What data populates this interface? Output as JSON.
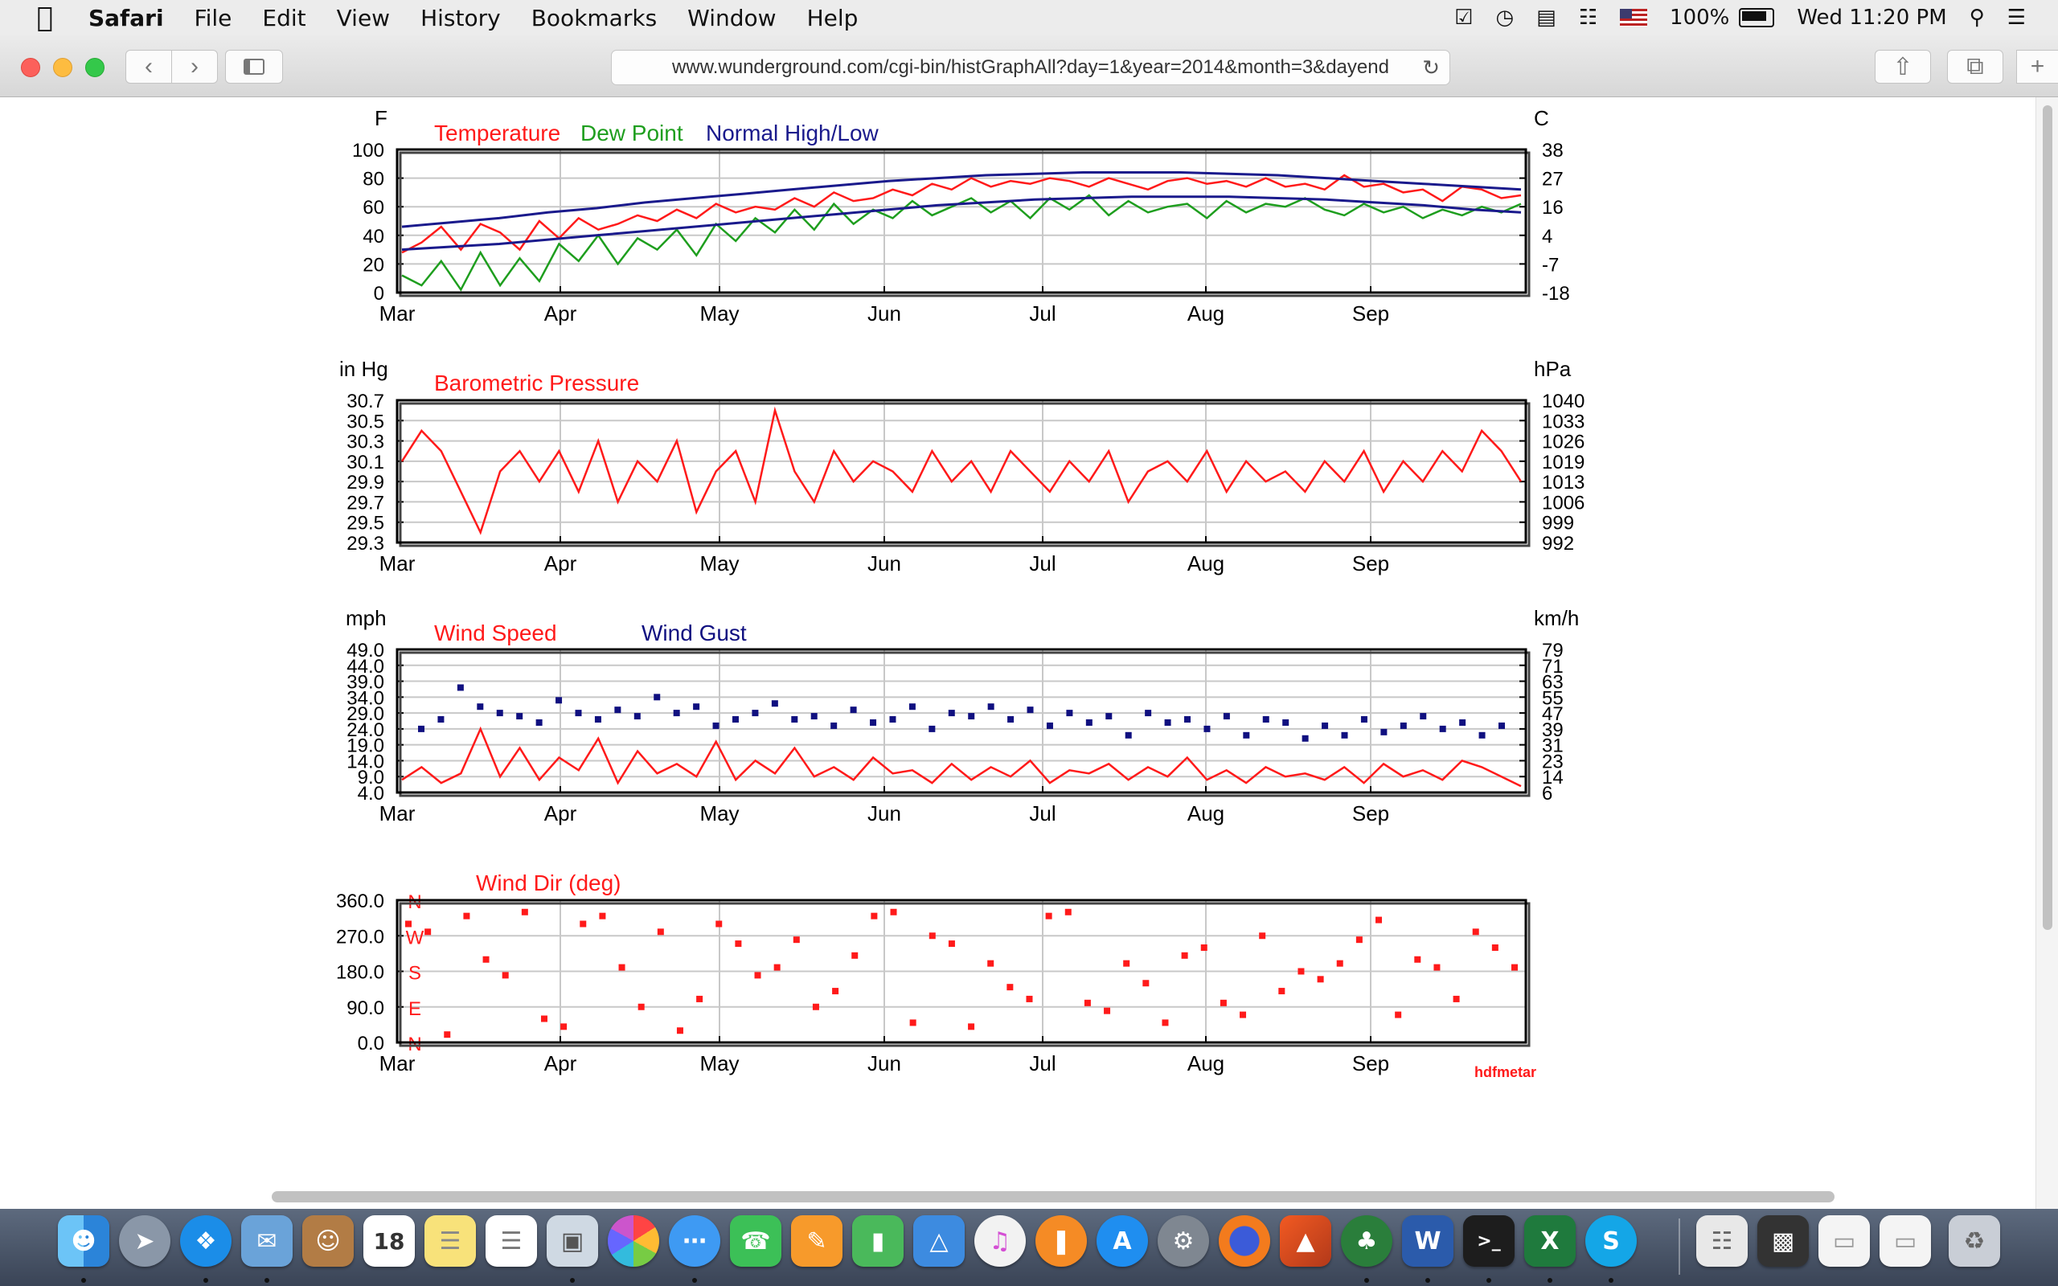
{
  "menubar": {
    "app": "Safari",
    "items": [
      "File",
      "Edit",
      "View",
      "History",
      "Bookmarks",
      "Window",
      "Help"
    ],
    "battery": "100%",
    "clock": "Wed 11:20 PM"
  },
  "toolbar": {
    "url": "www.wunderground.com/cgi-bin/histGraphAll?day=1&year=2014&month=3&dayend"
  },
  "colors": {
    "temperature": "#ff1a1a",
    "dew_point": "#1e9e1e",
    "normal": "#1a1a8c",
    "pressure": "#ff1a1a",
    "wind_speed": "#ff1a1a",
    "wind_gust": "#101080",
    "wind_dir": "#ff1a1a"
  },
  "x_ticks": [
    "Mar",
    "Apr",
    "May",
    "Jun",
    "Jul",
    "Aug",
    "Sep"
  ],
  "chart_data": [
    {
      "type": "line",
      "legend": [
        "Temperature",
        "Dew Point",
        "Normal High/Low"
      ],
      "ylabel": "F",
      "ylabel_right": "C",
      "y_ticks": [
        "100",
        "80",
        "60",
        "40",
        "20",
        "0"
      ],
      "y_ticks_right": [
        "38",
        "27",
        "16",
        "4",
        "-7",
        "-18"
      ],
      "ylim": [
        0,
        100
      ],
      "series": [
        {
          "name": "Temperature",
          "values": [
            28,
            35,
            46,
            30,
            48,
            42,
            30,
            50,
            38,
            52,
            44,
            48,
            54,
            50,
            58,
            52,
            62,
            56,
            60,
            58,
            66,
            60,
            70,
            64,
            66,
            72,
            68,
            76,
            72,
            80,
            74,
            78,
            76,
            80,
            78,
            74,
            80,
            76,
            72,
            78,
            80,
            76,
            78,
            74,
            80,
            74,
            76,
            72,
            82,
            74,
            76,
            70,
            72,
            64,
            74,
            72,
            66,
            68
          ]
        },
        {
          "name": "Dew Point",
          "values": [
            12,
            5,
            22,
            2,
            28,
            5,
            24,
            8,
            34,
            22,
            40,
            20,
            38,
            30,
            44,
            26,
            48,
            36,
            52,
            42,
            58,
            44,
            62,
            48,
            58,
            52,
            64,
            54,
            60,
            66,
            56,
            64,
            52,
            66,
            58,
            68,
            54,
            64,
            56,
            60,
            62,
            52,
            64,
            56,
            62,
            60,
            66,
            58,
            54,
            62,
            56,
            60,
            52,
            58,
            54,
            60,
            56,
            62
          ]
        },
        {
          "name": "Normal High",
          "values": [
            46,
            49,
            52,
            56,
            59,
            63,
            66,
            69,
            72,
            75,
            78,
            80,
            82,
            83,
            84,
            84,
            84,
            83,
            82,
            80,
            78,
            76,
            74,
            72
          ]
        },
        {
          "name": "Normal Low",
          "values": [
            30,
            32,
            34,
            37,
            40,
            43,
            46,
            49,
            52,
            55,
            58,
            61,
            63,
            65,
            66,
            67,
            67,
            67,
            66,
            65,
            63,
            61,
            58,
            56
          ]
        }
      ]
    },
    {
      "type": "line",
      "legend": [
        "Barometric Pressure"
      ],
      "ylabel": "in Hg",
      "ylabel_right": "hPa",
      "y_ticks": [
        "30.7",
        "30.5",
        "30.3",
        "30.1",
        "29.9",
        "29.7",
        "29.5",
        "29.3"
      ],
      "y_ticks_right": [
        "1040",
        "1033",
        "1026",
        "1019",
        "1013",
        "1006",
        "999",
        "992"
      ],
      "ylim": [
        29.3,
        30.7
      ],
      "series": [
        {
          "name": "Barometric Pressure",
          "values": [
            30.1,
            30.4,
            30.2,
            29.8,
            29.4,
            30.0,
            30.2,
            29.9,
            30.2,
            29.8,
            30.3,
            29.7,
            30.1,
            29.9,
            30.3,
            29.6,
            30.0,
            30.2,
            29.7,
            30.6,
            30.0,
            29.7,
            30.2,
            29.9,
            30.1,
            30.0,
            29.8,
            30.2,
            29.9,
            30.1,
            29.8,
            30.2,
            30.0,
            29.8,
            30.1,
            29.9,
            30.2,
            29.7,
            30.0,
            30.1,
            29.9,
            30.2,
            29.8,
            30.1,
            29.9,
            30.0,
            29.8,
            30.1,
            29.9,
            30.2,
            29.8,
            30.1,
            29.9,
            30.2,
            30.0,
            30.4,
            30.2,
            29.9
          ]
        }
      ]
    },
    {
      "type": "scatter",
      "legend": [
        "Wind Speed",
        "Wind Gust"
      ],
      "ylabel": "mph",
      "ylabel_right": "km/h",
      "y_ticks": [
        "49.0",
        "44.0",
        "39.0",
        "34.0",
        "29.0",
        "24.0",
        "19.0",
        "14.0",
        "9.0",
        "4.0"
      ],
      "y_ticks_right": [
        "79",
        "71",
        "63",
        "55",
        "47",
        "39",
        "31",
        "23",
        "14",
        "6"
      ],
      "ylim": [
        4,
        49
      ],
      "series": [
        {
          "name": "Wind Speed",
          "values": [
            8,
            12,
            7,
            10,
            24,
            9,
            18,
            8,
            15,
            11,
            21,
            7,
            17,
            10,
            13,
            9,
            20,
            8,
            14,
            10,
            18,
            9,
            12,
            8,
            15,
            10,
            11,
            7,
            13,
            8,
            12,
            9,
            14,
            7,
            11,
            10,
            13,
            8,
            12,
            9,
            15,
            8,
            11,
            7,
            12,
            9,
            10,
            8,
            12,
            7,
            13,
            9,
            11,
            8,
            14,
            12,
            9,
            6
          ]
        },
        {
          "name": "Wind Gust",
          "values": [
            24,
            27,
            37,
            31,
            29,
            28,
            26,
            33,
            29,
            27,
            30,
            28,
            34,
            29,
            31,
            25,
            27,
            29,
            32,
            27,
            28,
            25,
            30,
            26,
            27,
            31,
            24,
            29,
            28,
            31,
            27,
            30,
            25,
            29,
            26,
            28,
            22,
            29,
            26,
            27,
            24,
            28,
            22,
            27,
            26,
            21,
            25,
            22,
            27,
            23,
            25,
            28,
            24,
            26,
            22,
            25
          ]
        }
      ]
    },
    {
      "type": "scatter",
      "legend": [
        "Wind Dir (deg)"
      ],
      "y_ticks": [
        "360.0",
        "270.0",
        "180.0",
        "90.0",
        "0.0"
      ],
      "compass": [
        "N",
        "W",
        "S",
        "E",
        "N"
      ],
      "ylim": [
        0,
        360
      ],
      "series": [
        {
          "name": "Wind Dir (deg)",
          "values": [
            300,
            280,
            20,
            320,
            210,
            170,
            330,
            60,
            40,
            300,
            320,
            190,
            90,
            280,
            30,
            110,
            300,
            250,
            170,
            190,
            260,
            90,
            130,
            220,
            320,
            330,
            50,
            270,
            250,
            40,
            200,
            140,
            110,
            320,
            330,
            100,
            80,
            200,
            150,
            50,
            220,
            240,
            100,
            70,
            270,
            130,
            180,
            160,
            200,
            260,
            310,
            70,
            210,
            190,
            110,
            280,
            240,
            190
          ]
        }
      ]
    }
  ],
  "watermark": "hdfmetar"
}
